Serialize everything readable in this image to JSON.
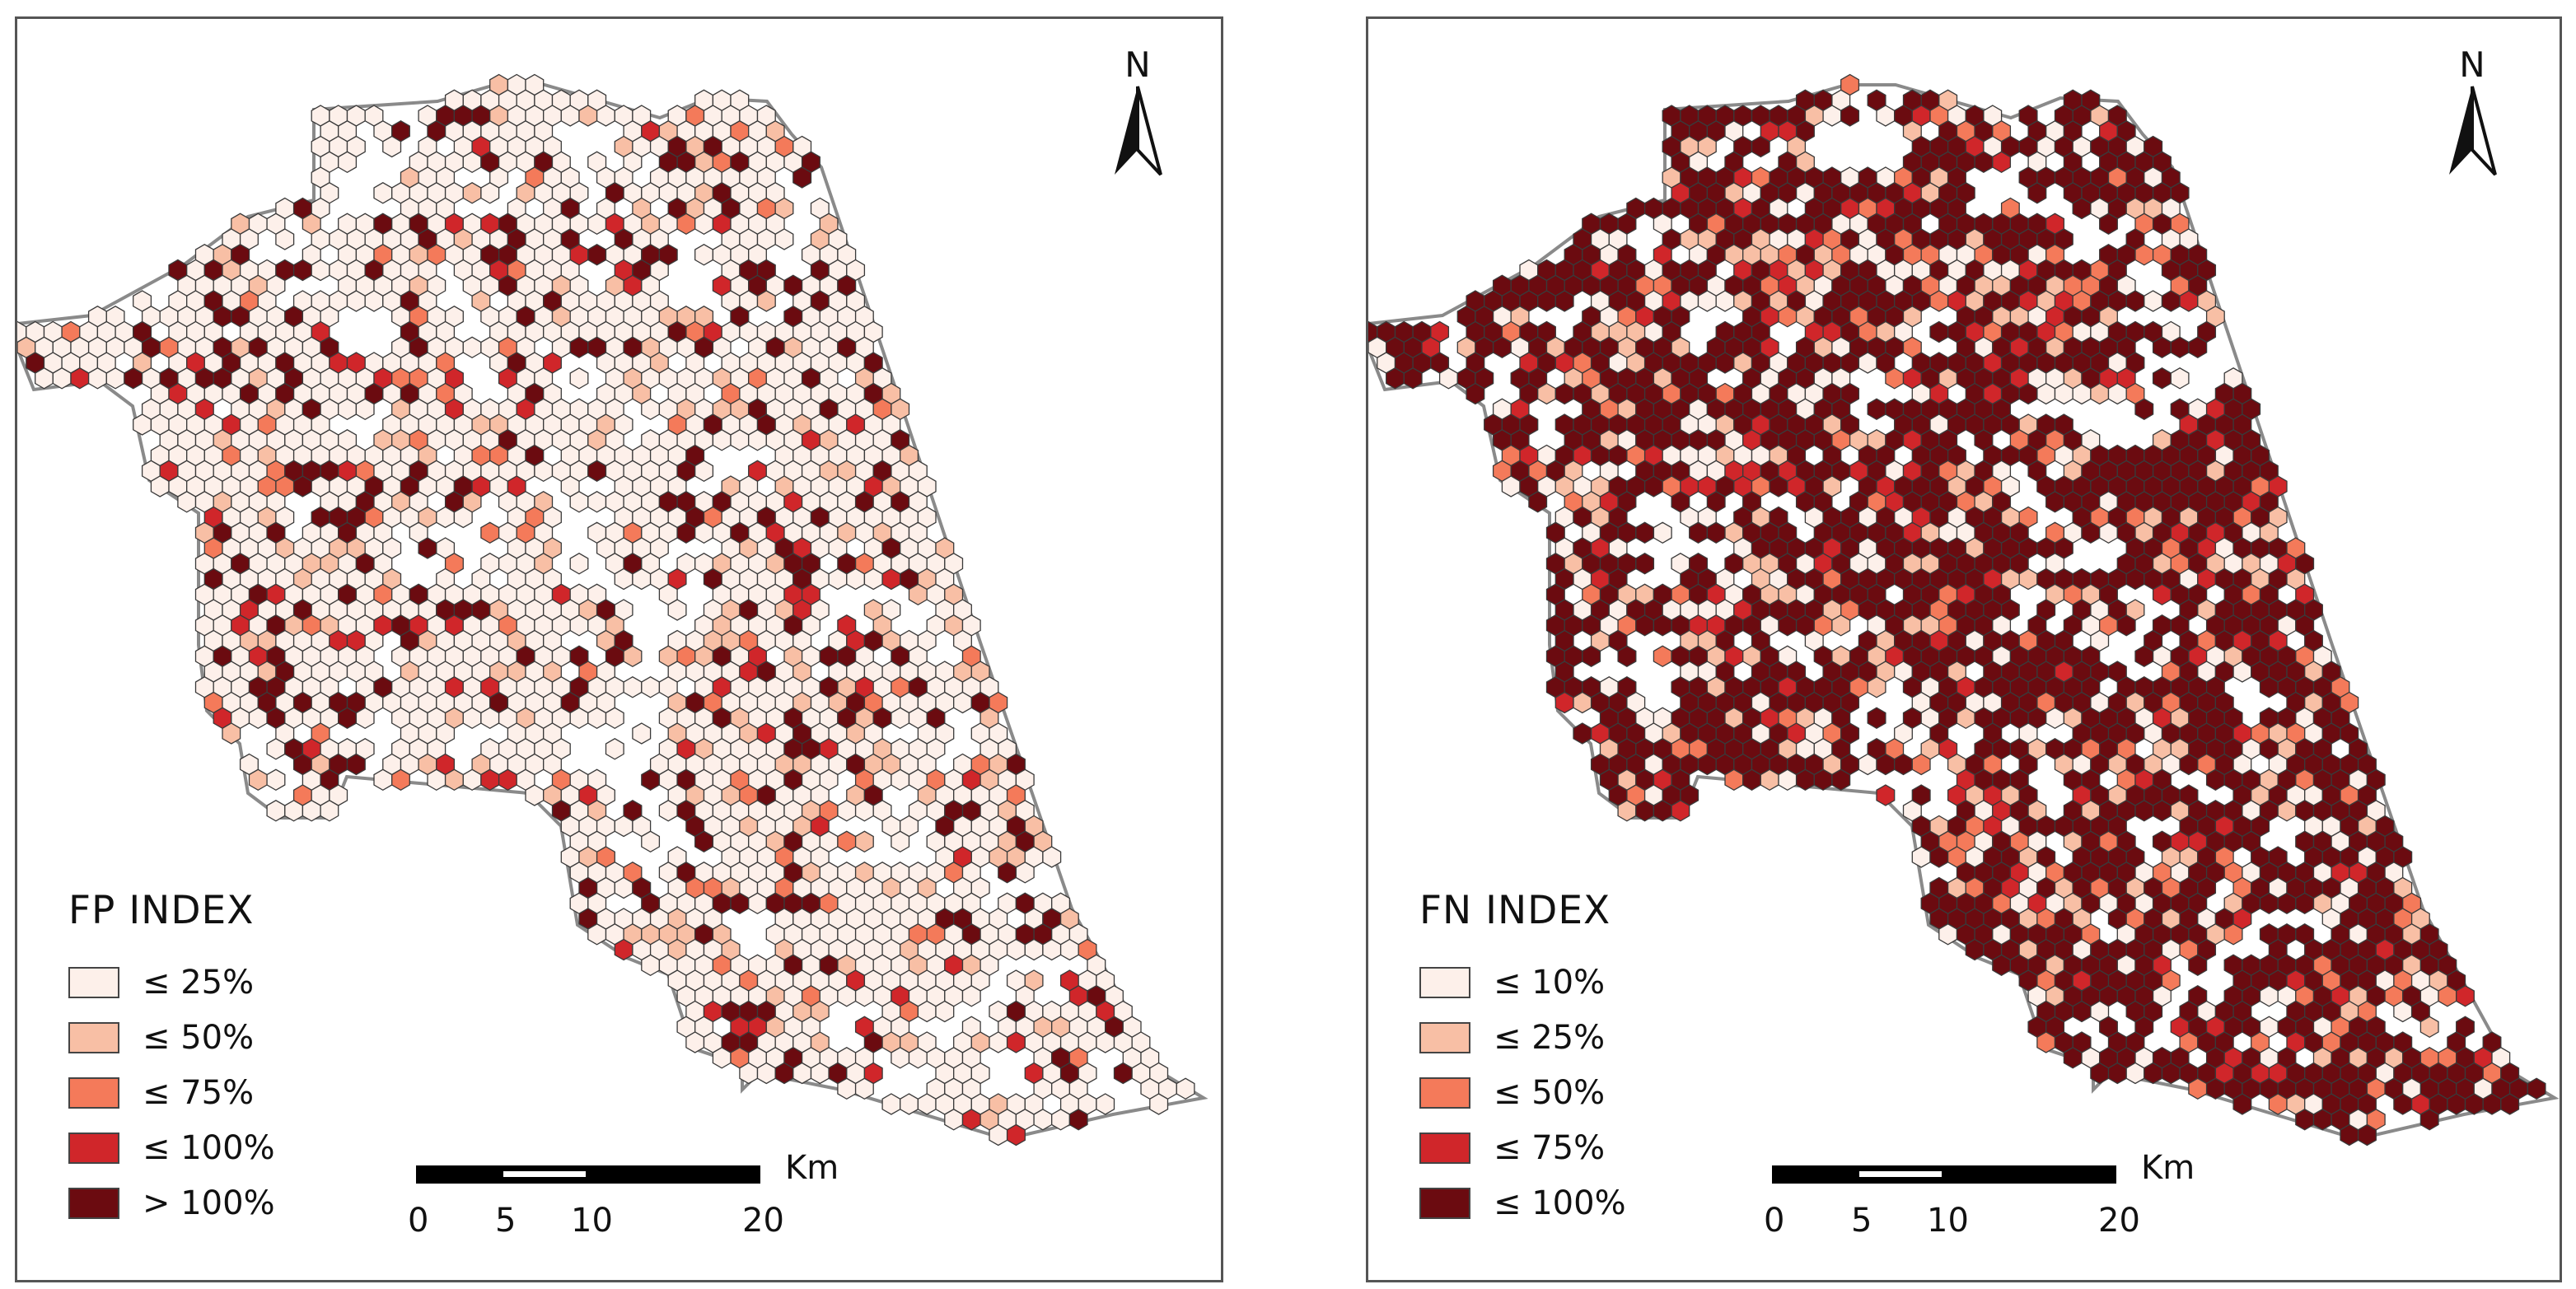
{
  "maps": [
    {
      "index_title": "FP INDEX",
      "legend": [
        {
          "label": "≤ 25%",
          "color": "#fdf0ea"
        },
        {
          "label": "≤ 50%",
          "color": "#f8bfa5"
        },
        {
          "label": "≤ 75%",
          "color": "#f47a5a"
        },
        {
          "label": "≤ 100%",
          "color": "#d0262a"
        },
        {
          "label": "> 100%",
          "color": "#6b0b10"
        }
      ],
      "north_label": "N",
      "scale": {
        "unit": "Km",
        "ticks": [
          "0",
          "5",
          "10",
          "20"
        ]
      }
    },
    {
      "index_title": "FN INDEX",
      "legend": [
        {
          "label": "≤ 10%",
          "color": "#fdf0ea"
        },
        {
          "label": "≤ 25%",
          "color": "#f8bfa5"
        },
        {
          "label": "≤ 50%",
          "color": "#f47a5a"
        },
        {
          "label": "≤ 75%",
          "color": "#d0262a"
        },
        {
          "label": "≤ 100%",
          "color": "#6b0b10"
        }
      ],
      "north_label": "N",
      "scale": {
        "unit": "Km",
        "ticks": [
          "0",
          "5",
          "10",
          "20"
        ]
      }
    }
  ],
  "outline_color": "#8a8a8a",
  "hex_stroke": "#3a3a3a"
}
